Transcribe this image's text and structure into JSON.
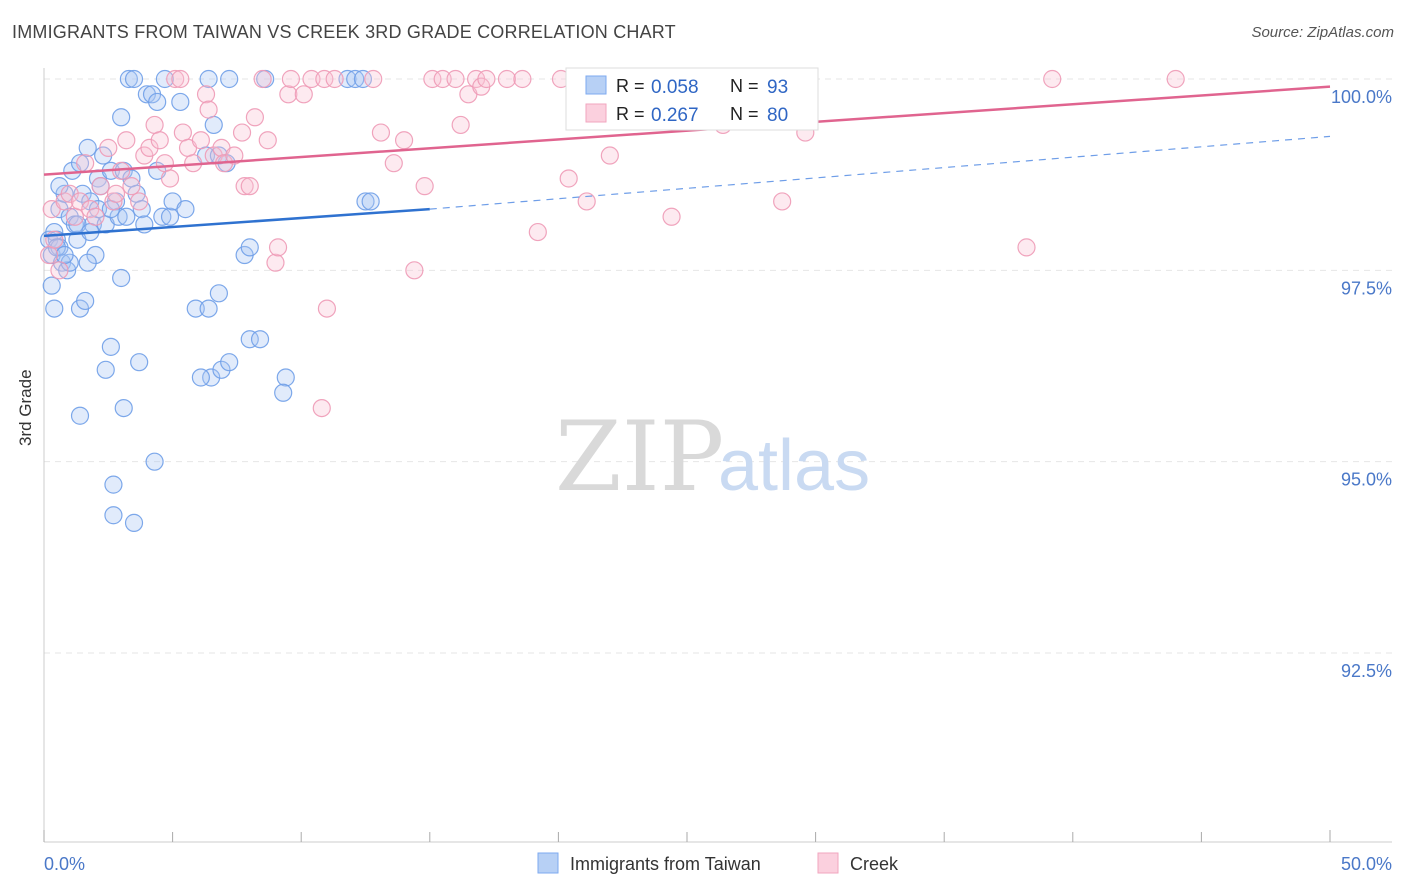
{
  "header": {
    "title": "IMMIGRANTS FROM TAIWAN VS CREEK 3RD GRADE CORRELATION CHART",
    "source": "Source: ZipAtlas.com"
  },
  "watermark": {
    "zip": "ZIP",
    "atlas": "atlas"
  },
  "colors": {
    "blue": "#7eaaf0",
    "blue_line": "#2f72d0",
    "pink": "#f2a6bf",
    "pink_line": "#e0648f"
  },
  "chart_data": {
    "type": "scatter",
    "title": "IMMIGRANTS FROM TAIWAN VS CREEK 3RD GRADE CORRELATION CHART",
    "xlabel": "",
    "ylabel": "3rd Grade",
    "xlim": [
      0,
      50
    ],
    "ylim": [
      90.2,
      100.4
    ],
    "x_tick_labels": {
      "left": "0.0%",
      "right": "50.0%"
    },
    "y_ticks": [
      {
        "value": 100.0,
        "label": "100.0%"
      },
      {
        "value": 97.5,
        "label": "97.5%"
      },
      {
        "value": 95.0,
        "label": "95.0%"
      },
      {
        "value": 92.5,
        "label": "92.5%"
      }
    ],
    "legend": [
      {
        "series": "Immigrants from Taiwan",
        "r_label": "R =",
        "r": "0.058",
        "n_label": "N =",
        "n": "93"
      },
      {
        "series": "Creek",
        "r_label": "R =",
        "r": "0.267",
        "n_label": "N =",
        "n": "80"
      }
    ],
    "series": [
      {
        "name": "Immigrants from Taiwan",
        "color": "#7eaaf0",
        "trend": {
          "x0": 0,
          "y0": 97.95,
          "x1": 15,
          "y1": 98.3,
          "dash_to_x": 50,
          "dash_to_y": 99.25
        },
        "points": [
          [
            0.2,
            97.9
          ],
          [
            0.3,
            97.7
          ],
          [
            0.3,
            97.3
          ],
          [
            0.4,
            98.0
          ],
          [
            0.4,
            97.0
          ],
          [
            0.5,
            97.9
          ],
          [
            0.6,
            98.3
          ],
          [
            0.6,
            97.8
          ],
          [
            0.7,
            97.6
          ],
          [
            0.8,
            98.5
          ],
          [
            0.9,
            97.5
          ],
          [
            1.0,
            98.2
          ],
          [
            1.1,
            98.8
          ],
          [
            1.2,
            98.1
          ],
          [
            1.3,
            97.9
          ],
          [
            1.4,
            98.9
          ],
          [
            1.4,
            97.0
          ],
          [
            1.5,
            98.5
          ],
          [
            1.6,
            97.1
          ],
          [
            1.7,
            99.1
          ],
          [
            1.8,
            98.4
          ],
          [
            1.9,
            98.1
          ],
          [
            2.0,
            97.7
          ],
          [
            2.1,
            98.7
          ],
          [
            2.2,
            98.6
          ],
          [
            2.3,
            99.0
          ],
          [
            2.4,
            98.1
          ],
          [
            2.6,
            98.8
          ],
          [
            2.8,
            98.4
          ],
          [
            2.9,
            98.2
          ],
          [
            3.0,
            99.5
          ],
          [
            3.1,
            98.8
          ],
          [
            3.2,
            98.2
          ],
          [
            3.3,
            100.0
          ],
          [
            3.4,
            98.7
          ],
          [
            3.5,
            100.0
          ],
          [
            3.6,
            98.5
          ],
          [
            3.8,
            98.3
          ],
          [
            4.0,
            99.8
          ],
          [
            4.2,
            99.8
          ],
          [
            4.4,
            99.7
          ],
          [
            4.4,
            98.8
          ],
          [
            4.6,
            98.2
          ],
          [
            4.7,
            100.0
          ],
          [
            4.9,
            98.2
          ],
          [
            5.0,
            98.4
          ],
          [
            5.3,
            99.7
          ],
          [
            5.5,
            98.3
          ],
          [
            6.3,
            99.0
          ],
          [
            6.4,
            100.0
          ],
          [
            6.6,
            99.4
          ],
          [
            6.8,
            99.0
          ],
          [
            7.1,
            98.9
          ],
          [
            7.2,
            100.0
          ],
          [
            7.8,
            97.7
          ],
          [
            8.0,
            97.8
          ],
          [
            8.6,
            100.0
          ],
          [
            11.8,
            100.0
          ],
          [
            12.1,
            100.0
          ],
          [
            12.4,
            100.0
          ],
          [
            12.5,
            98.4
          ],
          [
            12.7,
            98.4
          ],
          [
            1.4,
            95.6
          ],
          [
            1.7,
            97.6
          ],
          [
            2.6,
            96.5
          ],
          [
            2.4,
            96.2
          ],
          [
            3.0,
            97.4
          ],
          [
            3.1,
            95.7
          ],
          [
            3.7,
            96.3
          ],
          [
            4.3,
            95.0
          ],
          [
            2.7,
            94.7
          ],
          [
            2.7,
            94.3
          ],
          [
            3.5,
            94.2
          ],
          [
            5.9,
            97.0
          ],
          [
            6.4,
            97.0
          ],
          [
            6.8,
            97.2
          ],
          [
            6.5,
            96.1
          ],
          [
            6.9,
            96.2
          ],
          [
            7.2,
            96.3
          ],
          [
            6.1,
            96.1
          ],
          [
            8.0,
            96.6
          ],
          [
            8.4,
            96.6
          ],
          [
            9.4,
            96.1
          ],
          [
            9.3,
            95.9
          ],
          [
            0.6,
            98.6
          ],
          [
            0.5,
            97.8
          ],
          [
            1.0,
            97.6
          ],
          [
            2.1,
            98.3
          ],
          [
            2.6,
            98.3
          ],
          [
            3.9,
            98.1
          ],
          [
            1.3,
            98.1
          ],
          [
            0.8,
            97.7
          ],
          [
            1.8,
            98.0
          ]
        ]
      },
      {
        "name": "Creek",
        "color": "#f2a6bf",
        "trend": {
          "x0": 0,
          "y0": 98.75,
          "x1": 50,
          "y1": 99.9
        },
        "points": [
          [
            0.2,
            97.7
          ],
          [
            0.3,
            98.3
          ],
          [
            0.4,
            97.9
          ],
          [
            0.6,
            97.5
          ],
          [
            0.8,
            98.4
          ],
          [
            1.0,
            98.5
          ],
          [
            1.2,
            98.2
          ],
          [
            1.4,
            98.4
          ],
          [
            1.6,
            98.9
          ],
          [
            1.8,
            98.3
          ],
          [
            2.0,
            98.2
          ],
          [
            2.2,
            98.6
          ],
          [
            2.5,
            99.1
          ],
          [
            2.7,
            98.4
          ],
          [
            2.8,
            98.5
          ],
          [
            3.0,
            98.8
          ],
          [
            3.2,
            99.2
          ],
          [
            3.4,
            98.6
          ],
          [
            3.7,
            98.4
          ],
          [
            3.9,
            99.0
          ],
          [
            4.1,
            99.1
          ],
          [
            4.3,
            99.4
          ],
          [
            4.5,
            99.2
          ],
          [
            4.7,
            98.9
          ],
          [
            4.9,
            98.7
          ],
          [
            5.1,
            100.0
          ],
          [
            5.3,
            100.0
          ],
          [
            5.4,
            99.3
          ],
          [
            5.6,
            99.1
          ],
          [
            5.8,
            98.9
          ],
          [
            6.1,
            99.2
          ],
          [
            6.3,
            99.8
          ],
          [
            6.4,
            99.6
          ],
          [
            6.6,
            99.0
          ],
          [
            6.9,
            99.1
          ],
          [
            7.0,
            98.9
          ],
          [
            7.4,
            99.0
          ],
          [
            7.7,
            99.3
          ],
          [
            7.8,
            98.6
          ],
          [
            8.0,
            98.6
          ],
          [
            8.2,
            99.5
          ],
          [
            8.5,
            100.0
          ],
          [
            8.7,
            99.2
          ],
          [
            9.0,
            97.6
          ],
          [
            9.1,
            97.8
          ],
          [
            9.5,
            99.8
          ],
          [
            9.6,
            100.0
          ],
          [
            10.1,
            99.8
          ],
          [
            10.4,
            100.0
          ],
          [
            10.9,
            100.0
          ],
          [
            11.0,
            97.0
          ],
          [
            11.3,
            100.0
          ],
          [
            12.8,
            100.0
          ],
          [
            13.1,
            99.3
          ],
          [
            13.6,
            98.9
          ],
          [
            14.0,
            99.2
          ],
          [
            14.4,
            97.5
          ],
          [
            14.8,
            98.6
          ],
          [
            15.1,
            100.0
          ],
          [
            15.5,
            100.0
          ],
          [
            16.0,
            100.0
          ],
          [
            16.2,
            99.4
          ],
          [
            16.5,
            99.8
          ],
          [
            16.8,
            100.0
          ],
          [
            17.0,
            99.9
          ],
          [
            17.2,
            100.0
          ],
          [
            18.0,
            100.0
          ],
          [
            18.6,
            100.0
          ],
          [
            19.2,
            98.0
          ],
          [
            20.1,
            100.0
          ],
          [
            20.4,
            98.7
          ],
          [
            21.1,
            98.4
          ],
          [
            22.0,
            99.0
          ],
          [
            23.4,
            99.5
          ],
          [
            24.4,
            98.2
          ],
          [
            26.4,
            99.4
          ],
          [
            28.7,
            98.4
          ],
          [
            29.6,
            99.3
          ],
          [
            38.2,
            97.8
          ],
          [
            39.2,
            100.0
          ]
        ],
        "extra_points": [
          [
            10.8,
            95.7
          ],
          [
            44.0,
            100.0
          ]
        ]
      }
    ]
  },
  "bottom_legend": [
    "Immigrants from Taiwan",
    "Creek"
  ]
}
